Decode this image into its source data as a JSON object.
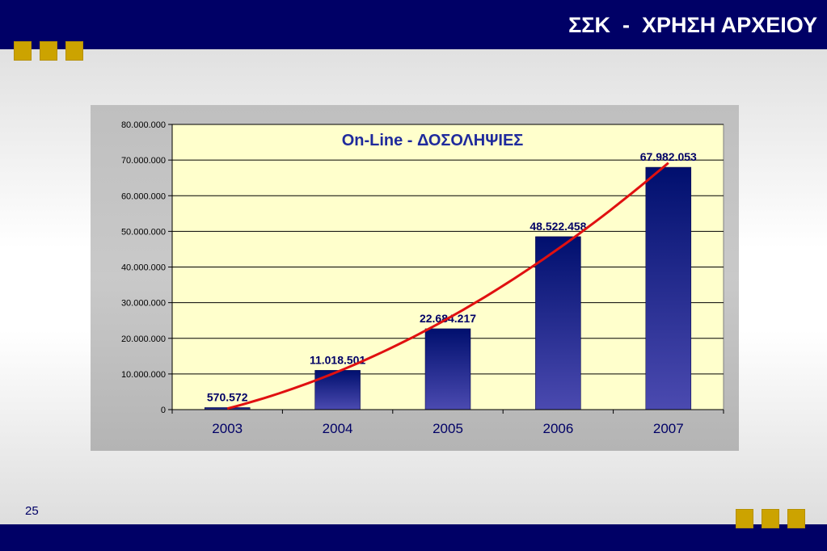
{
  "slide": {
    "title": "ΣΣΚ  -  ΧΡΗΣΗ ΑΡΧΕΙΟΥ",
    "page_number": "25"
  },
  "colors": {
    "navy": "#000066",
    "gold": "#cca300",
    "plot_background": "#ffffcc",
    "trend_line": "#e01010"
  },
  "chart_data": {
    "type": "bar",
    "title": "On-Line - ΔΟΣΟΛΗΨΙΕΣ",
    "categories": [
      "2003",
      "2004",
      "2005",
      "2006",
      "2007"
    ],
    "values": [
      570572,
      11018501,
      22684217,
      48522458,
      67982053
    ],
    "data_labels": [
      "570.572",
      "11.018.501",
      "22.684.217",
      "48.522.458",
      "67.982.053"
    ],
    "ylim": [
      0,
      80000000
    ],
    "y_ticks": [
      "0",
      "10.000.000",
      "20.000.000",
      "30.000.000",
      "40.000.000",
      "50.000.000",
      "60.000.000",
      "70.000.000",
      "80.000.000"
    ],
    "y_tick_values": [
      0,
      10000000,
      20000000,
      30000000,
      40000000,
      50000000,
      60000000,
      70000000,
      80000000
    ],
    "grid": true,
    "legend": "none",
    "trendline": {
      "type": "polynomial",
      "color": "#e01010"
    }
  }
}
